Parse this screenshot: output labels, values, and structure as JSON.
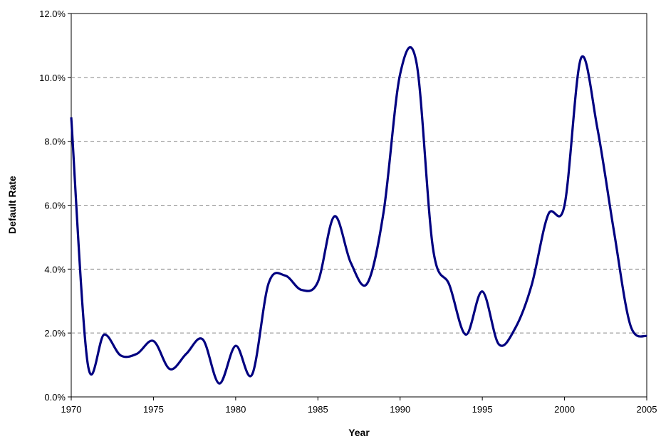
{
  "chart_data": {
    "type": "line",
    "x_label": "Year",
    "y_label": "Default Rate",
    "x": [
      1970,
      1971,
      1972,
      1973,
      1974,
      1975,
      1976,
      1977,
      1978,
      1979,
      1980,
      1981,
      1982,
      1983,
      1984,
      1985,
      1986,
      1987,
      1988,
      1989,
      1990,
      1991,
      1992,
      1993,
      1994,
      1995,
      1996,
      1997,
      1998,
      1999,
      2000,
      2001,
      2002,
      2003,
      2004,
      2005
    ],
    "series": [
      {
        "color": "#000080",
        "values": [
          8.75,
          1.05,
          1.95,
          1.3,
          1.35,
          1.75,
          0.87,
          1.35,
          1.8,
          0.42,
          1.6,
          0.7,
          3.55,
          3.8,
          3.35,
          3.6,
          5.65,
          4.2,
          3.55,
          5.8,
          10.1,
          10.45,
          4.65,
          3.5,
          1.95,
          3.3,
          1.65,
          2.15,
          3.5,
          5.7,
          6.0,
          10.6,
          8.4,
          5.2,
          2.25,
          1.9
        ]
      }
    ],
    "xlim": [
      1970,
      2005
    ],
    "xticks": [
      1970,
      1975,
      1980,
      1985,
      1990,
      1995,
      2000,
      2005
    ],
    "ylim": [
      0,
      12
    ],
    "yticks": [
      {
        "value": 0,
        "label": "0.0%"
      },
      {
        "value": 2,
        "label": "2.0%"
      },
      {
        "value": 4,
        "label": "4.0%"
      },
      {
        "value": 6,
        "label": "6.0%"
      },
      {
        "value": 8,
        "label": "8.0%"
      },
      {
        "value": 10,
        "label": "10.0%"
      },
      {
        "value": 12,
        "label": "12.0%"
      }
    ],
    "grid": true
  }
}
